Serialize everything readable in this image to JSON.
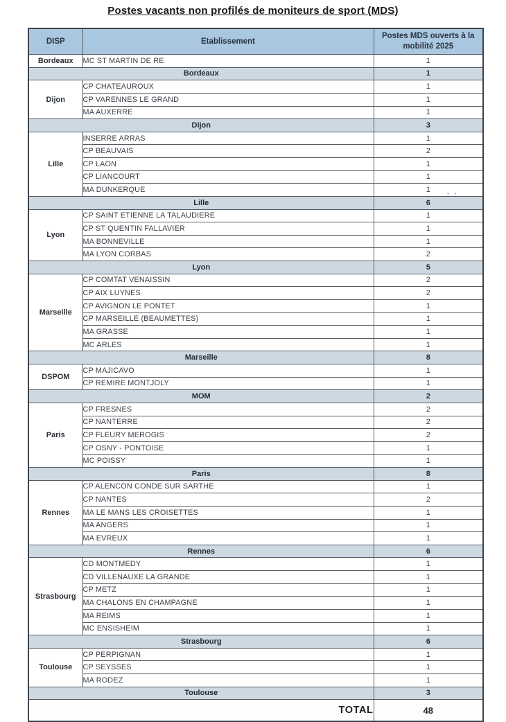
{
  "title": "Postes vacants non profilés de moniteurs de sport (MDS)",
  "table": {
    "headers": {
      "disp": "DISP",
      "etablissement": "Etablissement",
      "postes": "Postes MDS ouverts à la mobilité 2025"
    },
    "groups": [
      {
        "disp": "Bordeaux",
        "rows": [
          {
            "etab": "MC ST MARTIN DE RE",
            "n": "1"
          }
        ],
        "subtotal_label": "Bordeaux",
        "subtotal": "1"
      },
      {
        "disp": "Dijon",
        "rows": [
          {
            "etab": "CP CHATEAUROUX",
            "n": "1"
          },
          {
            "etab": "CP VARENNES LE GRAND",
            "n": "1"
          },
          {
            "etab": "MA AUXERRE",
            "n": "1"
          }
        ],
        "subtotal_label": "Dijon",
        "subtotal": "3"
      },
      {
        "disp": "Lille",
        "rows": [
          {
            "etab": "INSERRE ARRAS",
            "n": "1"
          },
          {
            "etab": "CP BEAUVAIS",
            "n": "2"
          },
          {
            "etab": "CP LAON",
            "n": "1"
          },
          {
            "etab": "CP LIANCOURT",
            "n": "1"
          },
          {
            "etab": "MA DUNKERQUE",
            "n": "1"
          }
        ],
        "subtotal_label": "Lille",
        "subtotal": "6"
      },
      {
        "disp": "Lyon",
        "rows": [
          {
            "etab": "CP SAINT ETIENNE LA TALAUDIERE",
            "n": "1"
          },
          {
            "etab": "CP ST QUENTIN FALLAVIER",
            "n": "1"
          },
          {
            "etab": "MA BONNEVILLE",
            "n": "1"
          },
          {
            "etab": "MA LYON CORBAS",
            "n": "2"
          }
        ],
        "subtotal_label": "Lyon",
        "subtotal": "5"
      },
      {
        "disp": "Marseille",
        "rows": [
          {
            "etab": "CP COMTAT VENAISSIN",
            "n": "2"
          },
          {
            "etab": "CP AIX LUYNES",
            "n": "2"
          },
          {
            "etab": "CP AVIGNON LE PONTET",
            "n": "1"
          },
          {
            "etab": "CP MARSEILLE (BEAUMETTES)",
            "n": "1"
          },
          {
            "etab": "MA GRASSE",
            "n": "1"
          },
          {
            "etab": "MC ARLES",
            "n": "1"
          }
        ],
        "subtotal_label": "Marseille",
        "subtotal": "8"
      },
      {
        "disp": "DSPOM",
        "rows": [
          {
            "etab": "CP MAJICAVO",
            "n": "1"
          },
          {
            "etab": "CP REMIRE MONTJOLY",
            "n": "1"
          }
        ],
        "subtotal_label": "MOM",
        "subtotal": "2"
      },
      {
        "disp": "Paris",
        "rows": [
          {
            "etab": "CP FRESNES",
            "n": "2"
          },
          {
            "etab": "CP NANTERRE",
            "n": "2"
          },
          {
            "etab": "CP FLEURY MEROGIS",
            "n": "2"
          },
          {
            "etab": "CP OSNY - PONTOISE",
            "n": "1"
          },
          {
            "etab": "MC POISSY",
            "n": "1"
          }
        ],
        "subtotal_label": "Paris",
        "subtotal": "8"
      },
      {
        "disp": "Rennes",
        "rows": [
          {
            "etab": "CP ALENCON CONDE SUR SARTHE",
            "n": "1"
          },
          {
            "etab": "CP NANTES",
            "n": "2"
          },
          {
            "etab": "MA LE MANS LES CROISETTES",
            "n": "1"
          },
          {
            "etab": "MA ANGERS",
            "n": "1"
          },
          {
            "etab": "MA EVREUX",
            "n": "1"
          }
        ],
        "subtotal_label": "Rennes",
        "subtotal": "6"
      },
      {
        "disp": "Strasbourg",
        "rows": [
          {
            "etab": "CD MONTMEDY",
            "n": "1"
          },
          {
            "etab": "CD VILLENAUXE LA GRANDE",
            "n": "1"
          },
          {
            "etab": "CP METZ",
            "n": "1"
          },
          {
            "etab": "MA CHALONS EN CHAMPAGNE",
            "n": "1"
          },
          {
            "etab": "MA REIMS",
            "n": "1"
          },
          {
            "etab": "MC ENSISHEIM",
            "n": "1"
          }
        ],
        "subtotal_label": "Strasbourg",
        "subtotal": "6"
      },
      {
        "disp": "Toulouse",
        "rows": [
          {
            "etab": "CP PERPIGNAN",
            "n": "1"
          },
          {
            "etab": "CP SEYSSES",
            "n": "1"
          },
          {
            "etab": "MA RODEZ",
            "n": "1"
          }
        ],
        "subtotal_label": "Toulouse",
        "subtotal": "3"
      }
    ],
    "total_label": "TOTAL",
    "total_value": "48"
  },
  "colors": {
    "header_bg": "#a9c7e1",
    "subtotal_bg": "#ccd8e2",
    "border": "#565b61",
    "text": "#3b4047"
  }
}
